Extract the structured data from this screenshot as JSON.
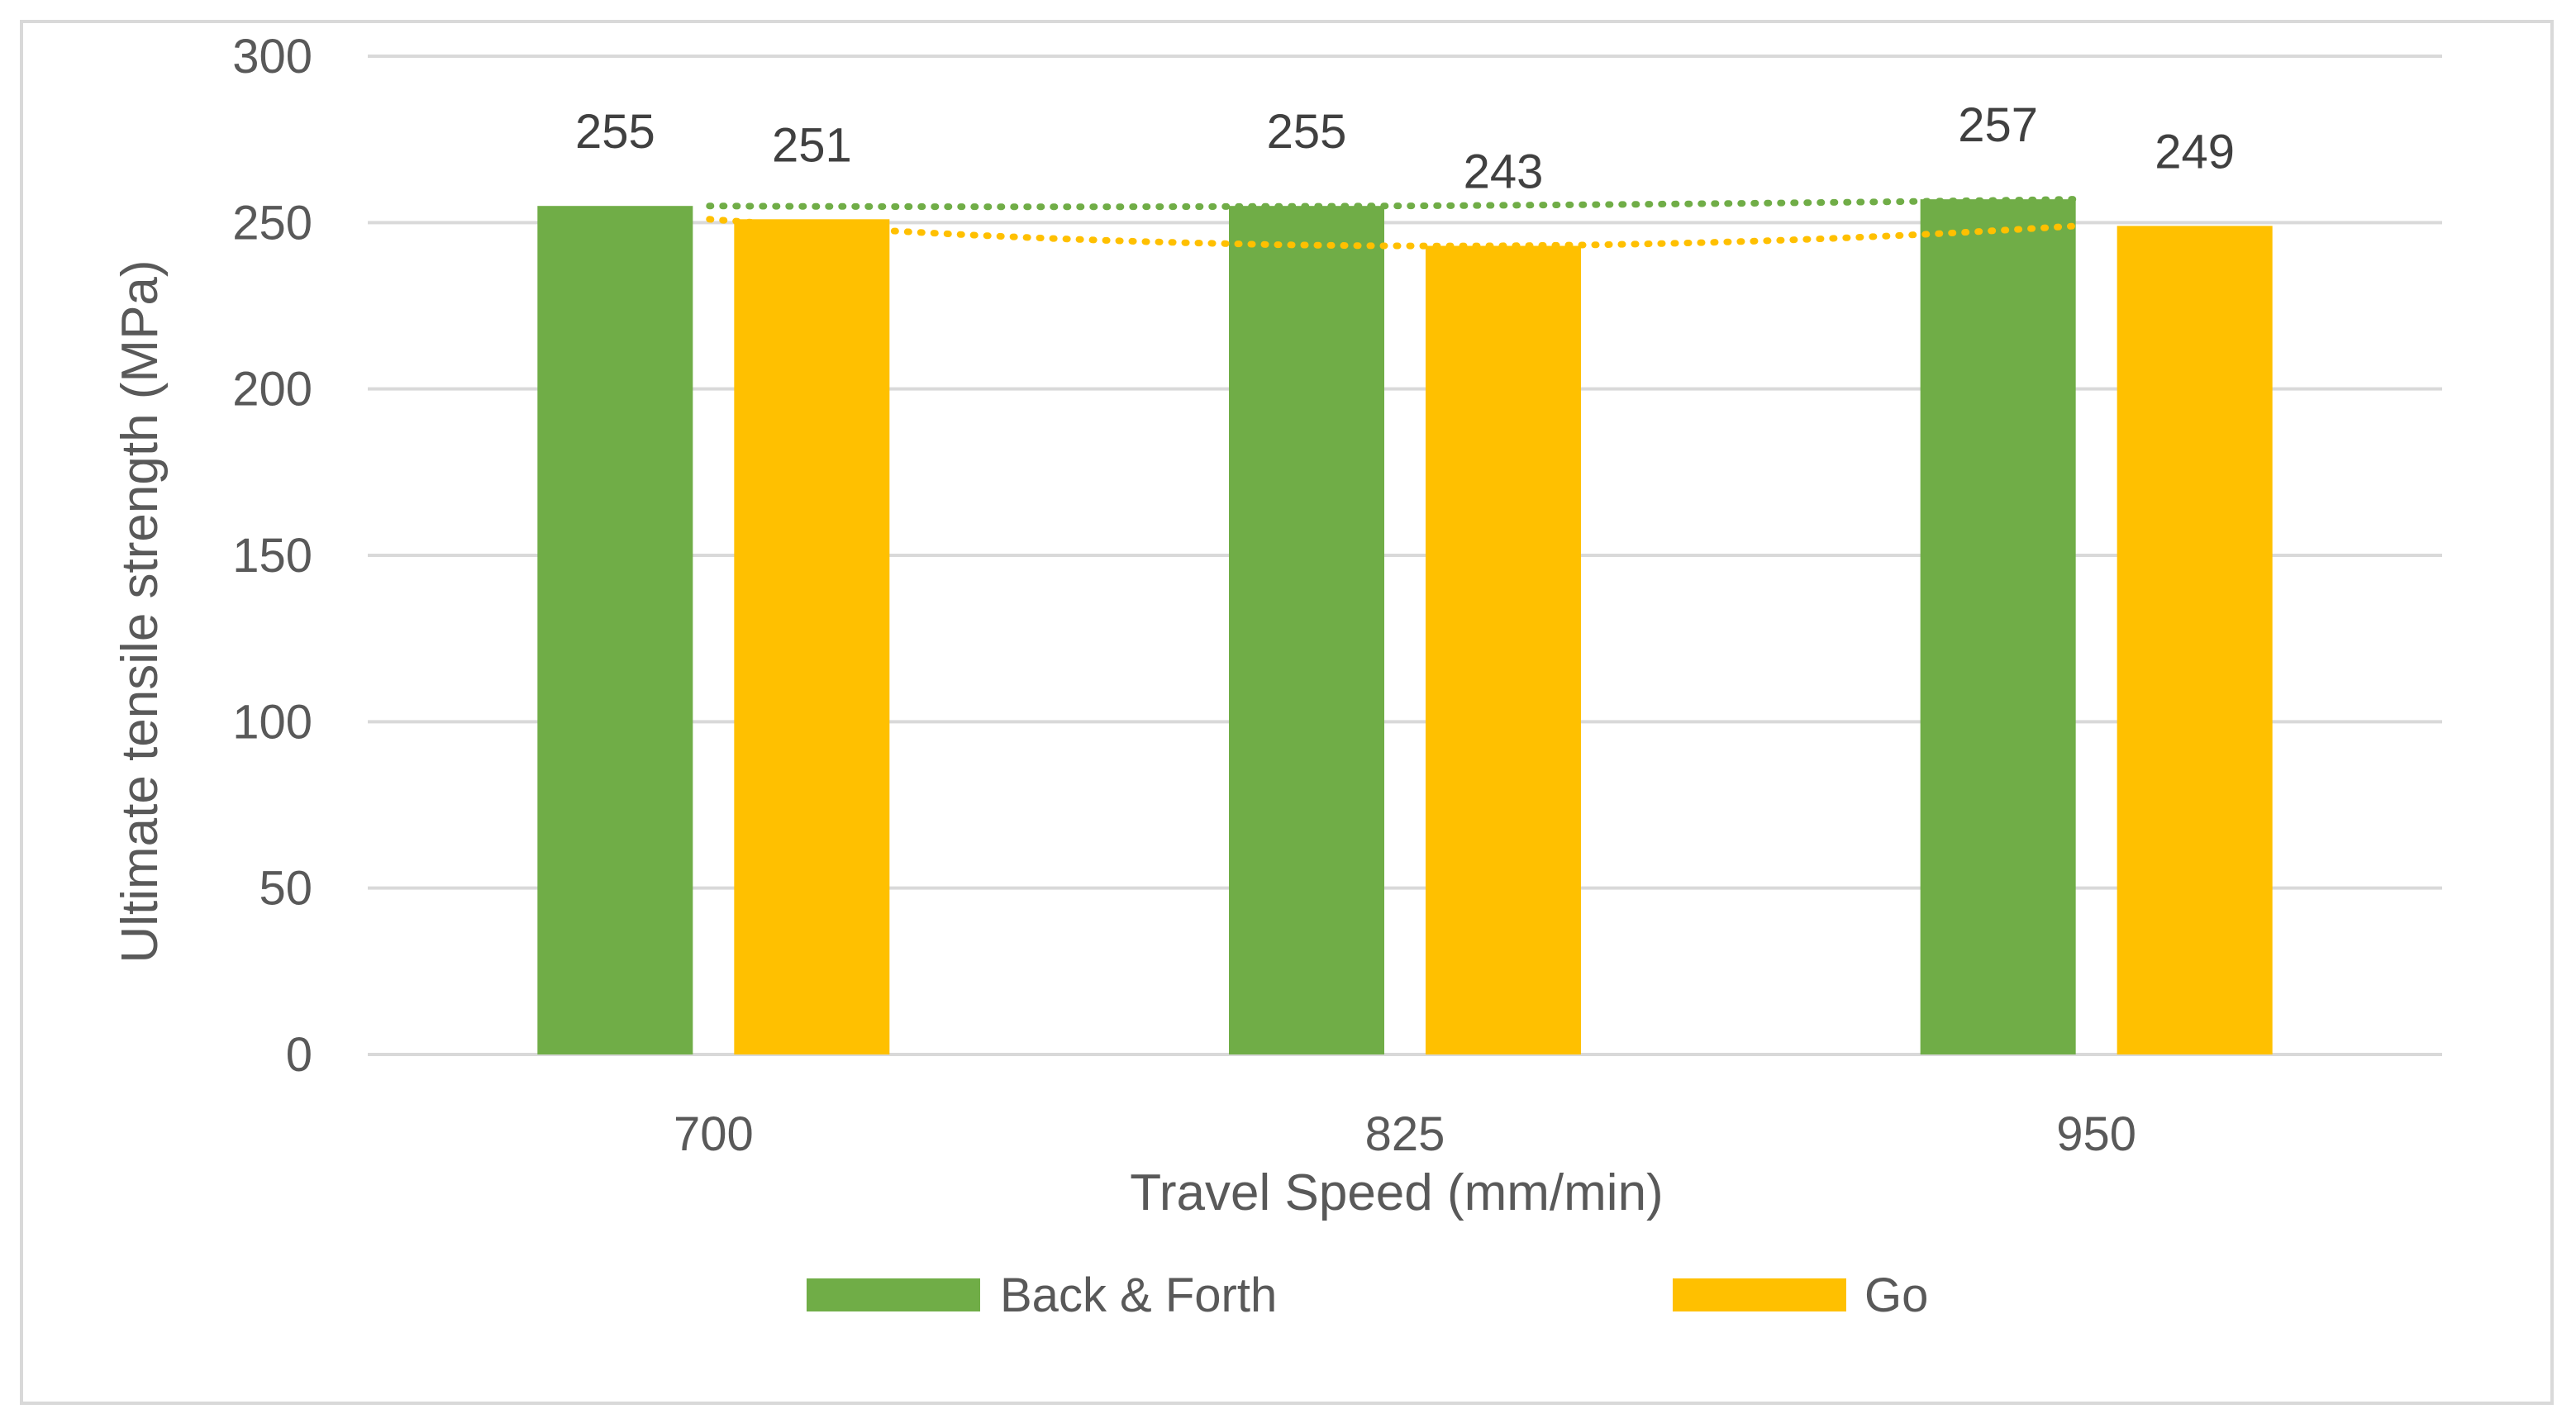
{
  "chart_data": {
    "type": "bar",
    "categories": [
      "700",
      "825",
      "950"
    ],
    "series": [
      {
        "name": "Back & Forth",
        "values": [
          255,
          255,
          257
        ],
        "color": "#70ad47"
      },
      {
        "name": "Go",
        "values": [
          251,
          243,
          249
        ],
        "color": "#ffc000"
      }
    ],
    "xlabel": "Travel Speed (mm/min)",
    "ylabel": "Ultimate tensile strength (MPa)",
    "ylim": [
      0,
      300
    ],
    "yticks": [
      0,
      50,
      100,
      150,
      200,
      250,
      300
    ],
    "grid": true,
    "gridline_color": "#d9d9d9",
    "legend_position": "bottom",
    "trendlines": "dotted polynomial trendline per series",
    "data_labels": true
  }
}
